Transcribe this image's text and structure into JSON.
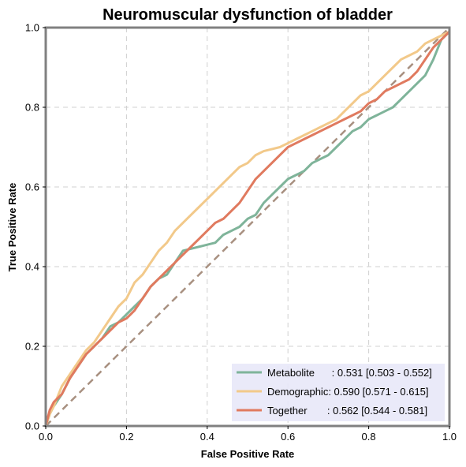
{
  "chart_data": {
    "type": "line",
    "title": "Neuromuscular dysfunction of bladder",
    "xlabel": "False Positive Rate",
    "ylabel": "True Positive Rate",
    "xlim": [
      0,
      1
    ],
    "ylim": [
      0,
      1
    ],
    "xticks": [
      "0.0",
      "0.2",
      "0.4",
      "0.6",
      "0.8",
      "1.0"
    ],
    "yticks": [
      "0.0",
      "0.2",
      "0.4",
      "0.6",
      "0.8",
      "1.0"
    ],
    "grid": true,
    "legend_position": "bottom-right",
    "reference_line": {
      "x": [
        0,
        1
      ],
      "y": [
        0,
        1
      ],
      "color": "#a89080",
      "style": "dashed"
    },
    "series": [
      {
        "name": "Metabolite",
        "label": "Metabolite      : 0.531 [0.503 - 0.552]",
        "color": "#7fb49a",
        "x": [
          0,
          0.01,
          0.02,
          0.04,
          0.06,
          0.08,
          0.1,
          0.12,
          0.14,
          0.16,
          0.18,
          0.2,
          0.22,
          0.24,
          0.26,
          0.28,
          0.3,
          0.32,
          0.34,
          0.36,
          0.38,
          0.4,
          0.42,
          0.44,
          0.46,
          0.48,
          0.5,
          0.52,
          0.54,
          0.56,
          0.58,
          0.6,
          0.62,
          0.64,
          0.66,
          0.68,
          0.7,
          0.72,
          0.74,
          0.76,
          0.78,
          0.8,
          0.82,
          0.84,
          0.86,
          0.88,
          0.9,
          0.92,
          0.94,
          0.96,
          0.98,
          1.0
        ],
        "y": [
          0,
          0.03,
          0.05,
          0.08,
          0.12,
          0.15,
          0.18,
          0.2,
          0.22,
          0.25,
          0.26,
          0.28,
          0.3,
          0.32,
          0.35,
          0.37,
          0.38,
          0.41,
          0.44,
          0.445,
          0.45,
          0.455,
          0.46,
          0.48,
          0.49,
          0.5,
          0.52,
          0.53,
          0.56,
          0.58,
          0.6,
          0.62,
          0.63,
          0.64,
          0.66,
          0.67,
          0.68,
          0.7,
          0.72,
          0.74,
          0.75,
          0.77,
          0.78,
          0.79,
          0.8,
          0.82,
          0.84,
          0.86,
          0.88,
          0.92,
          0.97,
          0.99
        ]
      },
      {
        "name": "Demographic",
        "label": "Demographic: 0.590 [0.571 - 0.615]",
        "color": "#f2c98a",
        "x": [
          0,
          0.01,
          0.02,
          0.04,
          0.06,
          0.08,
          0.1,
          0.12,
          0.14,
          0.16,
          0.18,
          0.2,
          0.22,
          0.24,
          0.26,
          0.28,
          0.3,
          0.32,
          0.34,
          0.36,
          0.38,
          0.4,
          0.42,
          0.44,
          0.46,
          0.48,
          0.5,
          0.52,
          0.54,
          0.56,
          0.58,
          0.6,
          0.62,
          0.64,
          0.66,
          0.68,
          0.7,
          0.72,
          0.74,
          0.76,
          0.78,
          0.8,
          0.82,
          0.84,
          0.86,
          0.88,
          0.9,
          0.92,
          0.94,
          0.96,
          0.98,
          1.0
        ],
        "y": [
          0,
          0.03,
          0.05,
          0.1,
          0.13,
          0.16,
          0.19,
          0.21,
          0.24,
          0.27,
          0.3,
          0.32,
          0.36,
          0.38,
          0.41,
          0.44,
          0.46,
          0.49,
          0.51,
          0.53,
          0.55,
          0.57,
          0.59,
          0.61,
          0.63,
          0.65,
          0.66,
          0.68,
          0.69,
          0.695,
          0.7,
          0.71,
          0.72,
          0.73,
          0.74,
          0.75,
          0.76,
          0.77,
          0.79,
          0.81,
          0.83,
          0.84,
          0.86,
          0.88,
          0.9,
          0.92,
          0.93,
          0.94,
          0.96,
          0.97,
          0.98,
          0.99
        ]
      },
      {
        "name": "Together",
        "label": "Together       : 0.562 [0.544 - 0.581]",
        "color": "#e07a5f",
        "x": [
          0,
          0.01,
          0.02,
          0.04,
          0.06,
          0.08,
          0.1,
          0.12,
          0.14,
          0.16,
          0.18,
          0.2,
          0.22,
          0.24,
          0.26,
          0.28,
          0.3,
          0.32,
          0.34,
          0.36,
          0.38,
          0.4,
          0.42,
          0.44,
          0.46,
          0.48,
          0.5,
          0.52,
          0.54,
          0.56,
          0.58,
          0.6,
          0.62,
          0.64,
          0.66,
          0.68,
          0.7,
          0.72,
          0.74,
          0.76,
          0.78,
          0.8,
          0.82,
          0.84,
          0.86,
          0.88,
          0.9,
          0.92,
          0.94,
          0.96,
          0.98,
          1.0
        ],
        "y": [
          0,
          0.04,
          0.06,
          0.08,
          0.12,
          0.15,
          0.18,
          0.2,
          0.22,
          0.24,
          0.26,
          0.27,
          0.29,
          0.32,
          0.35,
          0.37,
          0.39,
          0.41,
          0.43,
          0.45,
          0.47,
          0.49,
          0.51,
          0.52,
          0.54,
          0.56,
          0.59,
          0.62,
          0.64,
          0.66,
          0.68,
          0.7,
          0.71,
          0.72,
          0.73,
          0.74,
          0.75,
          0.76,
          0.77,
          0.78,
          0.79,
          0.81,
          0.82,
          0.84,
          0.85,
          0.86,
          0.87,
          0.89,
          0.92,
          0.95,
          0.97,
          0.99
        ]
      }
    ]
  }
}
